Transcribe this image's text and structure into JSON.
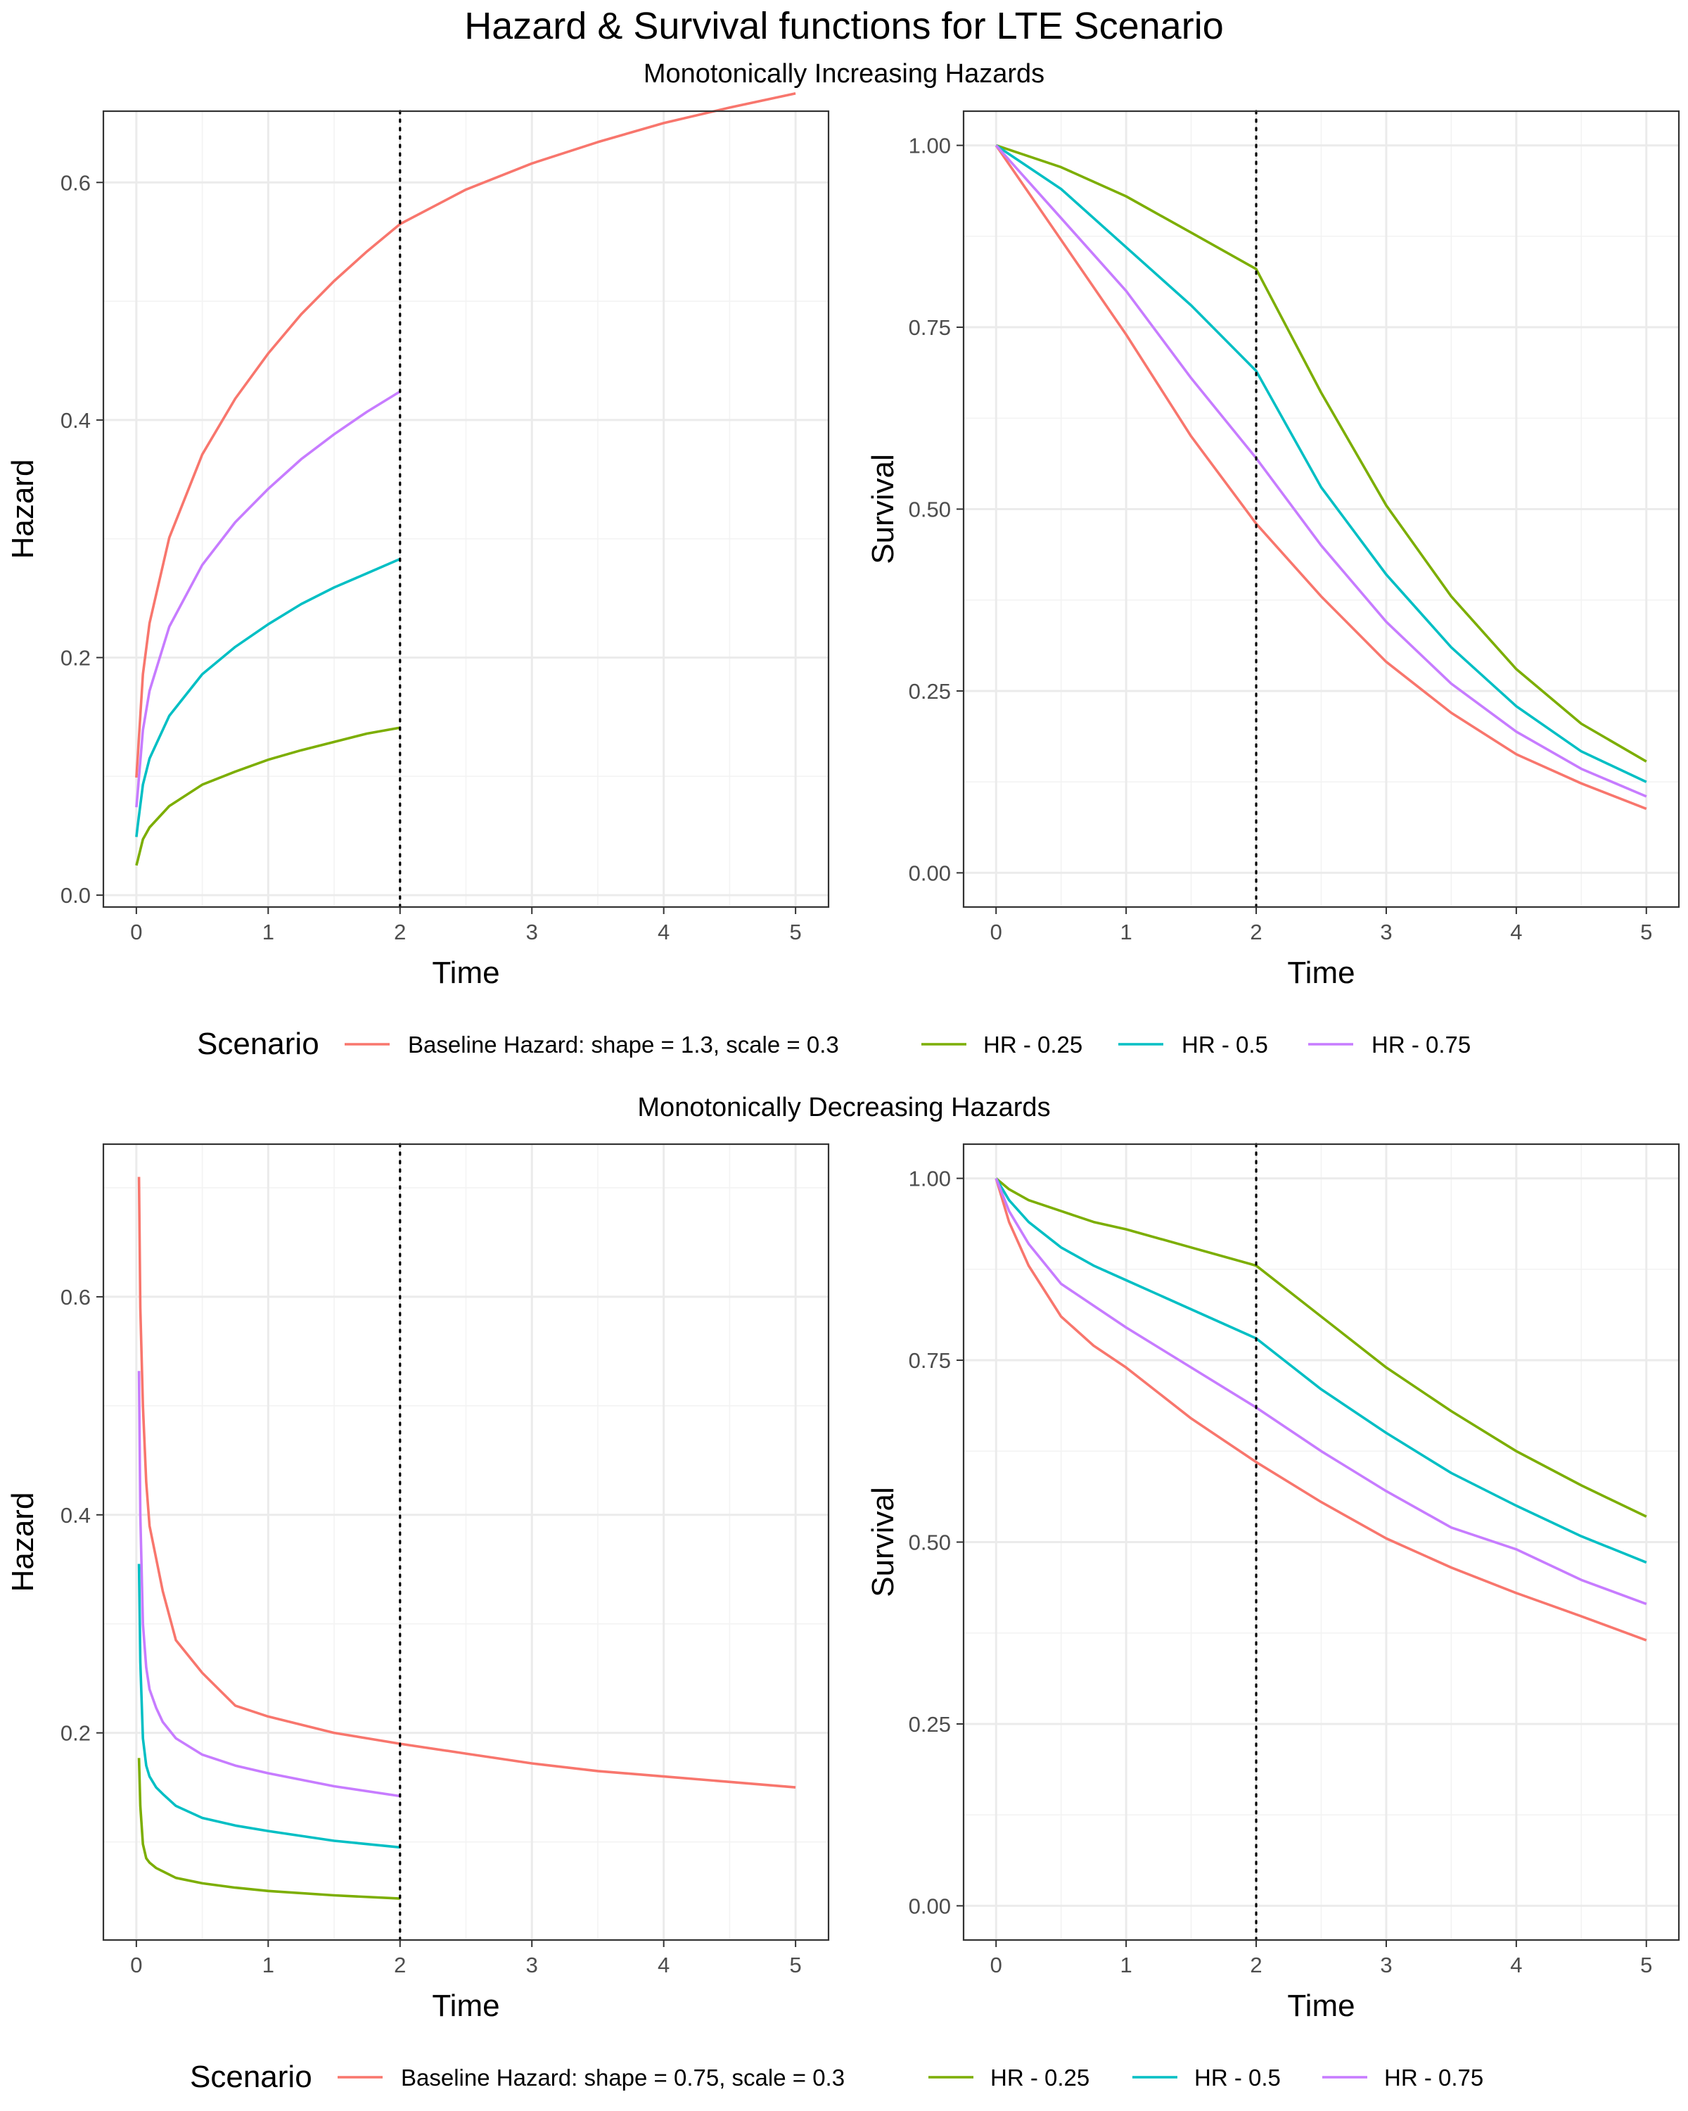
{
  "title": "Hazard & Survival functions for LTE Scenario",
  "legend_title": "Scenario",
  "colors": {
    "baseline": "#F8766D",
    "hr025": "#7CAE00",
    "hr05": "#00BFC4",
    "hr075": "#C77CFF"
  },
  "chart_data": [
    {
      "id": "inc-hazard",
      "type": "line",
      "group_title": "Monotonically Increasing Hazards",
      "xlabel": "Time",
      "ylabel": "Hazard",
      "xlim": [
        -0.25,
        5.25
      ],
      "ylim": [
        -0.01,
        0.66
      ],
      "x_ticks": [
        0,
        1,
        2,
        3,
        4,
        5
      ],
      "y_ticks": [
        0.0,
        0.2,
        0.4,
        0.6
      ],
      "y_tick_labels": [
        "0.0",
        "0.2",
        "0.4",
        "0.6"
      ],
      "vline": 2,
      "x": [
        0.0,
        0.01,
        0.05,
        0.1,
        0.25,
        0.5,
        0.75,
        1.0,
        1.25,
        1.5,
        1.75,
        2.0,
        2.5,
        3.0,
        3.5,
        4.0,
        4.5,
        5.0
      ],
      "series": [
        {
          "name": "Baseline Hazard: shape = 1.3, scale = 0.3",
          "color_key": "baseline",
          "values": [
            0.099,
            0.115,
            0.186,
            0.229,
            0.301,
            0.371,
            0.418,
            0.456,
            0.489,
            0.517,
            0.542,
            0.565,
            0.594,
            0.616,
            0.634,
            0.65,
            0.663,
            0.675
          ]
        },
        {
          "name": "HR - 0.25",
          "color_key": "hr025",
          "values": [
            0.025,
            0.029,
            0.047,
            0.057,
            0.075,
            0.093,
            0.104,
            0.114,
            0.122,
            0.129,
            0.136,
            0.141,
            null,
            null,
            null,
            null,
            null,
            null
          ]
        },
        {
          "name": "HR - 0.5",
          "color_key": "hr05",
          "values": [
            0.049,
            0.058,
            0.093,
            0.115,
            0.151,
            0.186,
            0.209,
            0.228,
            0.245,
            0.259,
            0.271,
            0.283,
            null,
            null,
            null,
            null,
            null,
            null
          ]
        },
        {
          "name": "HR - 0.75",
          "color_key": "hr075",
          "values": [
            0.074,
            0.086,
            0.139,
            0.172,
            0.226,
            0.278,
            0.314,
            0.342,
            0.367,
            0.388,
            0.407,
            0.424,
            null,
            null,
            null,
            null,
            null,
            null
          ]
        }
      ]
    },
    {
      "id": "inc-survival",
      "type": "line",
      "group_title": "Monotonically Increasing Hazards",
      "xlabel": "Time",
      "ylabel": "Survival",
      "xlim": [
        -0.25,
        5.25
      ],
      "ylim": [
        -0.047,
        1.047
      ],
      "x_ticks": [
        0,
        1,
        2,
        3,
        4,
        5
      ],
      "y_ticks": [
        0.0,
        0.25,
        0.5,
        0.75,
        1.0
      ],
      "y_tick_labels": [
        "0.00",
        "0.25",
        "0.50",
        "0.75",
        "1.00"
      ],
      "vline": 2,
      "x": [
        0.0,
        0.5,
        1.0,
        1.5,
        2.0,
        2.5,
        3.0,
        3.5,
        4.0,
        4.5,
        5.0
      ],
      "series": [
        {
          "name": "Baseline Hazard: shape = 1.3, scale = 0.3",
          "color_key": "baseline",
          "values": [
            1.0,
            0.87,
            0.74,
            0.6,
            0.48,
            0.38,
            0.29,
            0.22,
            0.163,
            0.123,
            0.088
          ]
        },
        {
          "name": "HR - 0.25",
          "color_key": "hr025",
          "values": [
            1.0,
            0.97,
            0.93,
            0.88,
            0.83,
            0.66,
            0.505,
            0.38,
            0.28,
            0.205,
            0.153
          ]
        },
        {
          "name": "HR - 0.5",
          "color_key": "hr05",
          "values": [
            1.0,
            0.94,
            0.86,
            0.78,
            0.69,
            0.53,
            0.41,
            0.31,
            0.229,
            0.167,
            0.125
          ]
        },
        {
          "name": "HR - 0.75",
          "color_key": "hr075",
          "values": [
            1.0,
            0.9,
            0.8,
            0.68,
            0.57,
            0.45,
            0.345,
            0.26,
            0.194,
            0.143,
            0.105
          ]
        }
      ]
    },
    {
      "id": "dec-hazard",
      "type": "line",
      "group_title": "Monotonically Decreasing Hazards",
      "xlabel": "Time",
      "ylabel": "Hazard",
      "xlim": [
        -0.25,
        5.25
      ],
      "ylim": [
        0.01,
        0.74
      ],
      "x_ticks": [
        0,
        1,
        2,
        3,
        4,
        5
      ],
      "y_ticks": [
        0.2,
        0.4,
        0.6
      ],
      "y_tick_labels": [
        "0.2",
        "0.4",
        "0.6"
      ],
      "vline": 2,
      "x": [
        0.02,
        0.03,
        0.05,
        0.075,
        0.1,
        0.15,
        0.2,
        0.3,
        0.5,
        0.75,
        1.0,
        1.5,
        2.0,
        2.5,
        3.0,
        3.5,
        4.0,
        4.5,
        5.0
      ],
      "series": [
        {
          "name": "Baseline Hazard: shape = 0.75, scale = 0.3",
          "color_key": "baseline",
          "values": [
            0.71,
            0.59,
            0.5,
            0.43,
            0.39,
            0.36,
            0.33,
            0.285,
            0.255,
            0.225,
            0.215,
            0.2,
            0.19,
            0.181,
            0.172,
            0.165,
            0.16,
            0.155,
            0.15
          ]
        },
        {
          "name": "HR - 0.25",
          "color_key": "hr025",
          "values": [
            0.177,
            0.133,
            0.098,
            0.085,
            0.081,
            0.076,
            0.073,
            0.067,
            0.062,
            0.058,
            0.055,
            0.051,
            0.048,
            null,
            null,
            null,
            null,
            null,
            null
          ]
        },
        {
          "name": "HR - 0.5",
          "color_key": "hr05",
          "values": [
            0.355,
            0.265,
            0.195,
            0.17,
            0.16,
            0.15,
            0.144,
            0.133,
            0.122,
            0.115,
            0.11,
            0.101,
            0.095,
            null,
            null,
            null,
            null,
            null,
            null
          ]
        },
        {
          "name": "HR - 0.75",
          "color_key": "hr075",
          "values": [
            0.532,
            0.4,
            0.3,
            0.26,
            0.24,
            0.223,
            0.21,
            0.195,
            0.18,
            0.17,
            0.163,
            0.151,
            0.142,
            null,
            null,
            null,
            null,
            null,
            null
          ]
        }
      ]
    },
    {
      "id": "dec-survival",
      "type": "line",
      "group_title": "Monotonically Decreasing Hazards",
      "xlabel": "Time",
      "ylabel": "Survival",
      "xlim": [
        -0.25,
        5.25
      ],
      "ylim": [
        -0.047,
        1.047
      ],
      "x_ticks": [
        0,
        1,
        2,
        3,
        4,
        5
      ],
      "y_ticks": [
        0.0,
        0.25,
        0.5,
        0.75,
        1.0
      ],
      "y_tick_labels": [
        "0.00",
        "0.25",
        "0.50",
        "0.75",
        "1.00"
      ],
      "vline": 2,
      "x": [
        0.0,
        0.1,
        0.25,
        0.5,
        0.75,
        1.0,
        1.5,
        2.0,
        2.5,
        3.0,
        3.5,
        4.0,
        4.5,
        5.0
      ],
      "series": [
        {
          "name": "Baseline Hazard: shape = 0.75, scale = 0.3",
          "color_key": "baseline",
          "values": [
            1.0,
            0.94,
            0.88,
            0.81,
            0.77,
            0.74,
            0.67,
            0.61,
            0.555,
            0.505,
            0.465,
            0.43,
            0.398,
            0.365
          ]
        },
        {
          "name": "HR - 0.25",
          "color_key": "hr025",
          "values": [
            1.0,
            0.985,
            0.97,
            0.955,
            0.94,
            0.93,
            0.905,
            0.88,
            0.81,
            0.74,
            0.68,
            0.625,
            0.578,
            0.535
          ]
        },
        {
          "name": "HR - 0.5",
          "color_key": "hr05",
          "values": [
            1.0,
            0.97,
            0.94,
            0.905,
            0.88,
            0.86,
            0.82,
            0.78,
            0.71,
            0.65,
            0.595,
            0.55,
            0.508,
            0.472
          ]
        },
        {
          "name": "HR - 0.75",
          "color_key": "hr075",
          "values": [
            1.0,
            0.955,
            0.91,
            0.855,
            0.825,
            0.795,
            0.74,
            0.685,
            0.625,
            0.57,
            0.52,
            0.49,
            0.448,
            0.415
          ]
        }
      ]
    }
  ],
  "legends": [
    {
      "items": [
        {
          "label": "Baseline Hazard: shape = 1.3, scale = 0.3",
          "color_key": "baseline"
        },
        {
          "label": "HR - 0.25",
          "color_key": "hr025"
        },
        {
          "label": "HR - 0.5",
          "color_key": "hr05"
        },
        {
          "label": "HR - 0.75",
          "color_key": "hr075"
        }
      ]
    },
    {
      "items": [
        {
          "label": "Baseline Hazard: shape = 0.75, scale = 0.3",
          "color_key": "baseline"
        },
        {
          "label": "HR - 0.25",
          "color_key": "hr025"
        },
        {
          "label": "HR - 0.5",
          "color_key": "hr05"
        },
        {
          "label": "HR - 0.75",
          "color_key": "hr075"
        }
      ]
    }
  ]
}
